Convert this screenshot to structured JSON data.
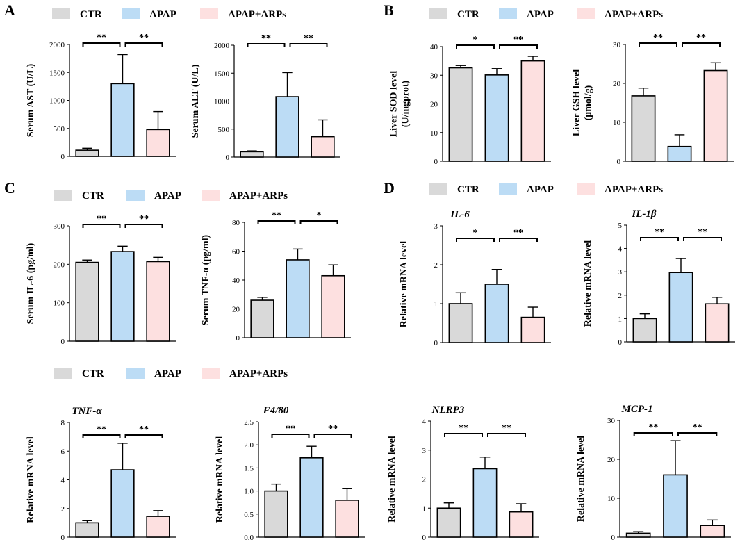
{
  "colors": {
    "CTR": "#d9d9d9",
    "APAP": "#bcdcf5",
    "APAP+ARPs": "#fde0e0",
    "stroke": "#000000"
  },
  "panel_labels": [
    "A",
    "B",
    "C",
    "D"
  ],
  "legends": [
    {
      "panel": "A",
      "items": [
        "CTR",
        "APAP",
        "APAP+ARPs"
      ]
    },
    {
      "panel": "B",
      "items": [
        "CTR",
        "APAP",
        "APAP+ARPs"
      ]
    },
    {
      "panel": "C",
      "items": [
        "CTR",
        "APAP",
        "APAP+ARPs"
      ]
    },
    {
      "panel": "D",
      "items": [
        "CTR",
        "APAP",
        "APAP+ARPs"
      ]
    },
    {
      "panel": "D-lower",
      "items": [
        "CTR",
        "APAP",
        "APAP+ARPs"
      ]
    }
  ],
  "chart_data": [
    {
      "id": "ast",
      "type": "bar",
      "title": "",
      "ylabel": [
        "Serum AST (U/L)"
      ],
      "ylim": [
        0,
        2000
      ],
      "yticks": [
        0,
        500,
        1000,
        1500,
        2000
      ],
      "tick_labels": [
        "0",
        "500",
        "1000",
        "1500",
        "2000"
      ],
      "categories": [
        "CTR",
        "APAP",
        "APAP+ARPs"
      ],
      "values": [
        110,
        1300,
        480
      ],
      "errors": [
        35,
        520,
        320
      ],
      "significance": [
        {
          "from": 0,
          "to": 1,
          "label": "**"
        },
        {
          "from": 1,
          "to": 2,
          "label": "**"
        }
      ]
    },
    {
      "id": "alt",
      "type": "bar",
      "title": "",
      "ylabel": [
        "Serum ALT (U/L)"
      ],
      "ylim": [
        0,
        2000
      ],
      "yticks": [
        0,
        500,
        1000,
        1500,
        2000
      ],
      "tick_labels": [
        "0",
        "500",
        "1000",
        "1500",
        "2000"
      ],
      "categories": [
        "CTR",
        "APAP",
        "APAP+ARPs"
      ],
      "values": [
        95,
        1080,
        365
      ],
      "errors": [
        15,
        430,
        300
      ],
      "significance": [
        {
          "from": 0,
          "to": 1,
          "label": "**"
        },
        {
          "from": 1,
          "to": 2,
          "label": "**"
        }
      ]
    },
    {
      "id": "sod",
      "type": "bar",
      "title": "",
      "ylabel": [
        "Liver SOD level",
        "(U/mgprot)"
      ],
      "ylim": [
        0,
        40
      ],
      "yticks": [
        0,
        10,
        20,
        30,
        40
      ],
      "tick_labels": [
        "0",
        "10",
        "20",
        "30",
        "40"
      ],
      "categories": [
        "CTR",
        "APAP",
        "APAP+ARPs"
      ],
      "values": [
        32.6,
        30.1,
        35
      ],
      "errors": [
        0.8,
        2.2,
        1.6
      ],
      "significance": [
        {
          "from": 0,
          "to": 1,
          "label": "*"
        },
        {
          "from": 1,
          "to": 2,
          "label": "**"
        }
      ]
    },
    {
      "id": "gsh",
      "type": "bar",
      "title": "",
      "ylabel": [
        "Liver GSH level",
        "(μmol/g)"
      ],
      "ylim": [
        0,
        30
      ],
      "yticks": [
        0,
        10,
        20,
        30
      ],
      "tick_labels": [
        "0",
        "10",
        "20",
        "30"
      ],
      "categories": [
        "CTR",
        "APAP",
        "APAP+ARPs"
      ],
      "values": [
        16.8,
        3.8,
        23.3
      ],
      "errors": [
        2,
        3,
        2
      ],
      "significance": [
        {
          "from": 0,
          "to": 1,
          "label": "**"
        },
        {
          "from": 1,
          "to": 2,
          "label": "**"
        }
      ]
    },
    {
      "id": "il6",
      "type": "bar",
      "title": "",
      "ylabel": [
        "Serum IL-6 (pg/ml)"
      ],
      "ylim": [
        0,
        300
      ],
      "yticks": [
        0,
        100,
        200,
        300
      ],
      "tick_labels": [
        "0",
        "100",
        "200",
        "300"
      ],
      "categories": [
        "CTR",
        "APAP",
        "APAP+ARPs"
      ],
      "values": [
        205,
        233,
        207
      ],
      "errors": [
        6,
        14,
        11
      ],
      "significance": [
        {
          "from": 0,
          "to": 1,
          "label": "**"
        },
        {
          "from": 1,
          "to": 2,
          "label": "**"
        }
      ]
    },
    {
      "id": "tnf",
      "type": "bar",
      "title": "",
      "ylabel": [
        "Serum TNF-α (pg/ml)"
      ],
      "ylim": [
        0,
        80
      ],
      "yticks": [
        0,
        20,
        40,
        60,
        80
      ],
      "tick_labels": [
        "0",
        "20",
        "40",
        "60",
        "80"
      ],
      "categories": [
        "CTR",
        "APAP",
        "APAP+ARPs"
      ],
      "values": [
        26,
        54,
        43
      ],
      "errors": [
        2,
        7.5,
        7.5
      ],
      "significance": [
        {
          "from": 0,
          "to": 1,
          "label": "**"
        },
        {
          "from": 1,
          "to": 2,
          "label": "*"
        }
      ]
    },
    {
      "id": "il6mrna",
      "type": "bar",
      "title": "IL-6",
      "ylabel": [
        "Relative mRNA level"
      ],
      "ylim": [
        0,
        3
      ],
      "yticks": [
        0,
        1,
        2,
        3
      ],
      "tick_labels": [
        "0",
        "1",
        "2",
        "3"
      ],
      "categories": [
        "CTR",
        "APAP",
        "APAP+ARPs"
      ],
      "values": [
        1,
        1.5,
        0.65
      ],
      "errors": [
        0.28,
        0.38,
        0.26
      ],
      "significance": [
        {
          "from": 0,
          "to": 1,
          "label": "*"
        },
        {
          "from": 1,
          "to": 2,
          "label": "**"
        }
      ]
    },
    {
      "id": "il1b",
      "type": "bar",
      "title": "IL-1β",
      "ylabel": [
        "Relative mRNA level"
      ],
      "ylim": [
        0,
        5
      ],
      "yticks": [
        0,
        1,
        2,
        3,
        4,
        5
      ],
      "tick_labels": [
        "0",
        "1",
        "2",
        "3",
        "4",
        "5"
      ],
      "categories": [
        "CTR",
        "APAP",
        "APAP+ARPs"
      ],
      "values": [
        1,
        2.97,
        1.63
      ],
      "errors": [
        0.2,
        0.6,
        0.28
      ],
      "significance": [
        {
          "from": 0,
          "to": 1,
          "label": "**"
        },
        {
          "from": 1,
          "to": 2,
          "label": "**"
        }
      ]
    },
    {
      "id": "tnfa",
      "type": "bar",
      "title": "TNF-α",
      "ylabel": [
        "Relative mRNA level"
      ],
      "ylim": [
        0,
        8
      ],
      "yticks": [
        0,
        2,
        4,
        6,
        8
      ],
      "tick_labels": [
        "0",
        "2",
        "4",
        "6",
        "8"
      ],
      "categories": [
        "CTR",
        "APAP",
        "APAP+ARPs"
      ],
      "values": [
        1,
        4.7,
        1.45
      ],
      "errors": [
        0.15,
        1.85,
        0.4
      ],
      "significance": [
        {
          "from": 0,
          "to": 1,
          "label": "**"
        },
        {
          "from": 1,
          "to": 2,
          "label": "**"
        }
      ]
    },
    {
      "id": "f480",
      "type": "bar",
      "title": "F4/80",
      "ylabel": [
        "Relative mRNA level"
      ],
      "ylim": [
        0,
        2.5
      ],
      "yticks": [
        0,
        0.5,
        1,
        1.5,
        2,
        2.5
      ],
      "tick_labels": [
        "0.0",
        "0.5",
        "1.0",
        "1.5",
        "2.0",
        "2.5"
      ],
      "categories": [
        "CTR",
        "APAP",
        "APAP+ARPs"
      ],
      "values": [
        1,
        1.72,
        0.8
      ],
      "errors": [
        0.15,
        0.25,
        0.25
      ],
      "significance": [
        {
          "from": 0,
          "to": 1,
          "label": "**"
        },
        {
          "from": 1,
          "to": 2,
          "label": "**"
        }
      ]
    },
    {
      "id": "nlrp3",
      "type": "bar",
      "title": "NLRP3",
      "ylabel": [
        "Relative mRNA level"
      ],
      "ylim": [
        0,
        4
      ],
      "yticks": [
        0,
        1,
        2,
        3,
        4
      ],
      "tick_labels": [
        "0",
        "1",
        "2",
        "3",
        "4"
      ],
      "categories": [
        "CTR",
        "APAP",
        "APAP+ARPs"
      ],
      "values": [
        1,
        2.36,
        0.87
      ],
      "errors": [
        0.18,
        0.4,
        0.28
      ],
      "significance": [
        {
          "from": 0,
          "to": 1,
          "label": "**"
        },
        {
          "from": 1,
          "to": 2,
          "label": "**"
        }
      ]
    },
    {
      "id": "mcp1",
      "type": "bar",
      "title": "MCP-1",
      "ylabel": [
        "Relative mRNA level"
      ],
      "ylim": [
        0,
        30
      ],
      "yticks": [
        0,
        10,
        20,
        30
      ],
      "tick_labels": [
        "0",
        "10",
        "20",
        "30"
      ],
      "categories": [
        "CTR",
        "APAP",
        "APAP+ARPs"
      ],
      "values": [
        1,
        16,
        3
      ],
      "errors": [
        0.4,
        8.8,
        1.4
      ],
      "significance": [
        {
          "from": 0,
          "to": 1,
          "label": "**"
        },
        {
          "from": 1,
          "to": 2,
          "label": "**"
        }
      ]
    }
  ]
}
